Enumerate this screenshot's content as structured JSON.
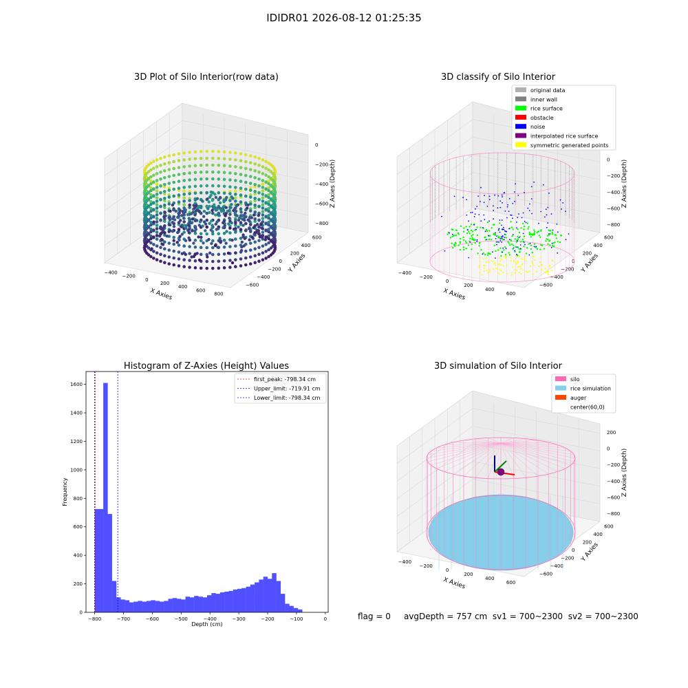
{
  "suptitle": "IDIDR01 2026-08-12 01:25:35",
  "status": {
    "flag": "flag = 0",
    "avg_depth": "avgDepth = 757 cm",
    "sv1": "sv1 = 700~2300",
    "sv2": "sv2 = 700~2300"
  },
  "chart_data": [
    {
      "type": "scatter",
      "subtype": "3d",
      "title": "3D Plot of Silo Interior(row data)",
      "xlabel": "X Axies",
      "ylabel": "Y Axies",
      "zlabel": "Z Axies (Depth)",
      "x_ticks": [
        -400,
        -200,
        0,
        200,
        400,
        600,
        800
      ],
      "y_ticks": [
        -600,
        -400,
        -200,
        0,
        200,
        400,
        600
      ],
      "z_ticks": [
        -800,
        -600,
        -400,
        -200,
        0
      ],
      "colormap": "viridis"
    },
    {
      "type": "scatter",
      "subtype": "3d",
      "title": "3D classify of Silo Interior",
      "xlabel": "X Axies",
      "ylabel": "Y Axies",
      "zlabel": "Z Axies (Depth)",
      "x_ticks": [
        -400,
        -200,
        0,
        200,
        400,
        600
      ],
      "y_ticks": [
        -600,
        -400,
        -200,
        0,
        200,
        400,
        600
      ],
      "z_ticks": [
        -800,
        -600,
        -400,
        -200,
        0,
        200
      ],
      "legend_position": "top-right",
      "legend": [
        {
          "label": "original data",
          "color": "#b0b0b0"
        },
        {
          "label": "inner wall",
          "color": "#808080"
        },
        {
          "label": "rice surface",
          "color": "#00ff00"
        },
        {
          "label": "obstacle",
          "color": "#ff0000"
        },
        {
          "label": "noise",
          "color": "#0000ff"
        },
        {
          "label": "interpolated rice surface",
          "color": "#800080"
        },
        {
          "label": "symmetric generated points",
          "color": "#ffff00"
        }
      ]
    },
    {
      "type": "bar",
      "subtype": "histogram",
      "title": "Histogram of Z-Axies (Height) Values",
      "xlabel": "Depth (cm)",
      "ylabel": "Frequency",
      "xlim": [
        -830,
        10
      ],
      "ylim": [
        0,
        1690
      ],
      "x_ticks": [
        -800,
        -700,
        -600,
        -500,
        -400,
        -300,
        -200,
        -100,
        0
      ],
      "y_ticks": [
        0,
        200,
        400,
        600,
        800,
        1000,
        1200,
        1400,
        1600
      ],
      "bar_color": "#5050ff",
      "bin_start": -800,
      "bin_width": 15,
      "counts": [
        725,
        725,
        1610,
        690,
        220,
        105,
        90,
        85,
        70,
        75,
        80,
        75,
        80,
        85,
        80,
        75,
        80,
        95,
        100,
        95,
        90,
        110,
        105,
        115,
        110,
        105,
        120,
        135,
        130,
        140,
        145,
        150,
        160,
        165,
        170,
        180,
        195,
        210,
        230,
        250,
        235,
        275,
        220,
        130,
        60,
        45,
        30,
        20
      ],
      "vlines": [
        {
          "label": "first_peak: -798.34 cm",
          "value": -798.34,
          "color": "#ff0000"
        },
        {
          "label": "Upper_limit: -719.91 cm",
          "value": -719.91,
          "color": "#0000ff"
        },
        {
          "label": "Lower_limit: -798.34 cm",
          "value": -798.34,
          "color": "#0000ff"
        }
      ],
      "legend_position": "top-right"
    },
    {
      "type": "surface",
      "subtype": "3d",
      "title": "3D simulation of Silo Interior",
      "xlabel": "X Axies",
      "ylabel": "Y Axies",
      "zlabel": "Z Axies (Depth)",
      "x_ticks": [
        -400,
        -200,
        0,
        200,
        400,
        600
      ],
      "y_ticks": [
        -600,
        -400,
        -200,
        0,
        200,
        400,
        600
      ],
      "z_ticks": [
        -800,
        -600,
        -400,
        -200,
        0,
        200
      ],
      "legend_position": "top-right",
      "legend": [
        {
          "label": "silo",
          "color": "#ff69b4"
        },
        {
          "label": "rice simulation",
          "color": "#87ceeb"
        },
        {
          "label": "auger",
          "color": "#ff4500"
        },
        {
          "label": "center(60,0)",
          "color": "#ffffff"
        }
      ]
    }
  ]
}
